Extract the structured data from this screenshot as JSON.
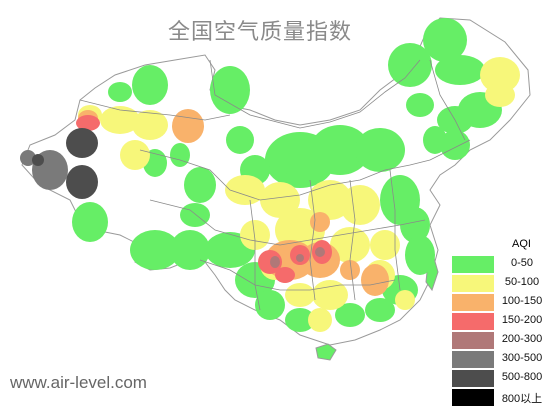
{
  "title": "全国空气质量指数",
  "watermark": "www.air-level.com",
  "legend": {
    "title": "AQI",
    "items": [
      {
        "label": "0-50",
        "color": "#66ee66"
      },
      {
        "label": "50-100",
        "color": "#f7f77a"
      },
      {
        "label": "100-150",
        "color": "#f9b26b"
      },
      {
        "label": "150-200",
        "color": "#f56b6b"
      },
      {
        "label": "200-300",
        "color": "#b07878"
      },
      {
        "label": "300-500",
        "color": "#7a7a7a"
      },
      {
        "label": "500-800",
        "color": "#4d4d4d"
      },
      {
        "label": "800以上",
        "color": "#000000"
      }
    ]
  }
}
